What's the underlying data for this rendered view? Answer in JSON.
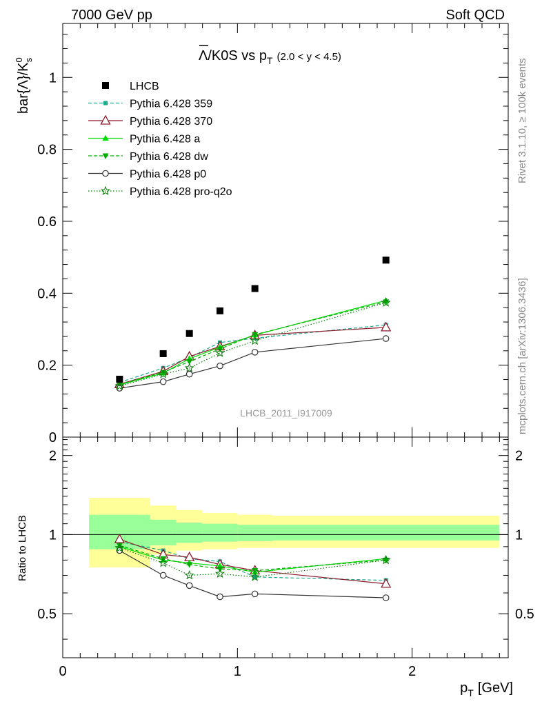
{
  "header": {
    "left": "7000 GeV pp",
    "right": "Soft QCD"
  },
  "side_labels": {
    "rivet": "Rivet 3.1.10, ≥ 100k events",
    "mcplots": "mcplots.cern.ch [arXiv:1306.3436]"
  },
  "chart_data": [
    {
      "type": "scatter",
      "panel": "main",
      "title_main": "Λ/K0S vs p",
      "title_sub": "T",
      "title_range": "(2.0 < y < 4.5)",
      "ylabel": "bar{Λ}/K",
      "ylabel_sup": "0",
      "ylabel_sub": "s",
      "ylim": [
        0,
        1.15
      ],
      "xlim": [
        0,
        2.55
      ],
      "yticks": [
        0,
        0.2,
        0.4,
        0.6,
        0.8,
        1
      ],
      "ytick_labels": [
        "0",
        "0.2",
        "0.4",
        "0.6",
        "0.8",
        "1"
      ],
      "watermark": "LHCB_2011_I917009",
      "legend_position": "top-left",
      "series": [
        {
          "name": "LHCB",
          "color": "#000000",
          "marker": "square",
          "line": "none",
          "x": [
            0.325,
            0.575,
            0.725,
            0.9,
            1.1,
            1.85
          ],
          "y": [
            0.161,
            0.232,
            0.288,
            0.351,
            0.413,
            0.492
          ]
        },
        {
          "name": "Pythia 6.428 359",
          "color": "#1aaa8c",
          "marker": "small-square",
          "line": "dashed",
          "x": [
            0.325,
            0.575,
            0.725,
            0.9,
            1.1,
            1.85
          ],
          "y": [
            0.152,
            0.192,
            0.221,
            0.263,
            0.275,
            0.312
          ]
        },
        {
          "name": "Pythia 6.428 370",
          "color": "#8c1a2a",
          "marker": "open-triangle",
          "line": "solid",
          "x": [
            0.325,
            0.575,
            0.725,
            0.9,
            1.1,
            1.85
          ],
          "y": [
            0.147,
            0.183,
            0.224,
            0.252,
            0.283,
            0.305
          ]
        },
        {
          "name": "Pythia 6.428 a",
          "color": "#00dd00",
          "marker": "triangle",
          "line": "solid",
          "x": [
            0.325,
            0.575,
            0.725,
            0.9,
            1.1,
            1.85
          ],
          "y": [
            0.145,
            0.178,
            0.218,
            0.25,
            0.284,
            0.38
          ]
        },
        {
          "name": "Pythia 6.428 dw",
          "color": "#00aa00",
          "marker": "triangle-down",
          "line": "dashed",
          "x": [
            0.325,
            0.575,
            0.725,
            0.9,
            1.1,
            1.85
          ],
          "y": [
            0.147,
            0.18,
            0.21,
            0.245,
            0.285,
            0.376
          ]
        },
        {
          "name": "Pythia 6.428 p0",
          "color": "#333333",
          "marker": "open-circle",
          "line": "solid",
          "x": [
            0.325,
            0.575,
            0.725,
            0.9,
            1.1,
            1.85
          ],
          "y": [
            0.136,
            0.154,
            0.175,
            0.198,
            0.236,
            0.274
          ]
        },
        {
          "name": "Pythia 6.428 pro-q2o",
          "color": "#007700",
          "marker": "open-star",
          "line": "dotted",
          "x": [
            0.325,
            0.575,
            0.725,
            0.9,
            1.1,
            1.85
          ],
          "y": [
            0.142,
            0.175,
            0.192,
            0.234,
            0.268,
            0.374
          ]
        }
      ]
    },
    {
      "type": "scatter",
      "panel": "ratio",
      "ylabel": "Ratio to LHCB",
      "xlabel": "p",
      "xlabel_sub": "T",
      "xlabel_unit": "[GeV]",
      "ylim": [
        0.34,
        2.35
      ],
      "xlim": [
        0,
        2.55
      ],
      "yticks": [
        0.5,
        1,
        2
      ],
      "ytick_labels": [
        "0.5",
        "1",
        "2"
      ],
      "xticks": [
        0,
        1,
        2
      ],
      "xtick_labels": [
        "0",
        "1",
        "2"
      ],
      "uncertainty_bands": {
        "x_edges": [
          0.15,
          0.5,
          0.65,
          0.8,
          1.0,
          1.2,
          2.5
        ],
        "yellow_lo": [
          0.75,
          0.84,
          0.87,
          0.88,
          0.89,
          0.89
        ],
        "yellow_hi": [
          1.38,
          1.29,
          1.24,
          1.21,
          1.19,
          1.18
        ],
        "green_lo": [
          0.88,
          0.91,
          0.93,
          0.94,
          0.945,
          0.95
        ],
        "green_hi": [
          1.19,
          1.14,
          1.11,
          1.1,
          1.09,
          1.09
        ]
      },
      "series": [
        {
          "name": "Pythia 6.428 359",
          "color": "#1aaa8c",
          "marker": "small-square",
          "line": "dashed",
          "x": [
            0.325,
            0.575,
            0.725,
            0.9,
            1.1,
            1.85
          ],
          "y": [
            0.94,
            0.87,
            0.81,
            0.79,
            0.69,
            0.67
          ]
        },
        {
          "name": "Pythia 6.428 370",
          "color": "#8c1a2a",
          "marker": "open-triangle",
          "line": "solid",
          "x": [
            0.325,
            0.575,
            0.725,
            0.9,
            1.1,
            1.85
          ],
          "y": [
            0.96,
            0.84,
            0.82,
            0.77,
            0.73,
            0.65
          ]
        },
        {
          "name": "Pythia 6.428 a",
          "color": "#00dd00",
          "marker": "triangle",
          "line": "solid",
          "x": [
            0.325,
            0.575,
            0.725,
            0.9,
            1.1,
            1.85
          ],
          "y": [
            0.9,
            0.8,
            0.78,
            0.76,
            0.72,
            0.81
          ]
        },
        {
          "name": "Pythia 6.428 dw",
          "color": "#00aa00",
          "marker": "triangle-down",
          "line": "dashed",
          "x": [
            0.325,
            0.575,
            0.725,
            0.9,
            1.1,
            1.85
          ],
          "y": [
            0.91,
            0.81,
            0.77,
            0.74,
            0.73,
            0.8
          ]
        },
        {
          "name": "Pythia 6.428 p0",
          "color": "#333333",
          "marker": "open-circle",
          "line": "solid",
          "x": [
            0.325,
            0.575,
            0.725,
            0.9,
            1.1,
            1.85
          ],
          "y": [
            0.87,
            0.7,
            0.64,
            0.58,
            0.595,
            0.575
          ]
        },
        {
          "name": "Pythia 6.428 pro-q2o",
          "color": "#007700",
          "marker": "open-star",
          "line": "dotted",
          "x": [
            0.325,
            0.575,
            0.725,
            0.9,
            1.1,
            1.85
          ],
          "y": [
            0.89,
            0.78,
            0.7,
            0.71,
            0.69,
            0.8
          ]
        }
      ]
    }
  ]
}
